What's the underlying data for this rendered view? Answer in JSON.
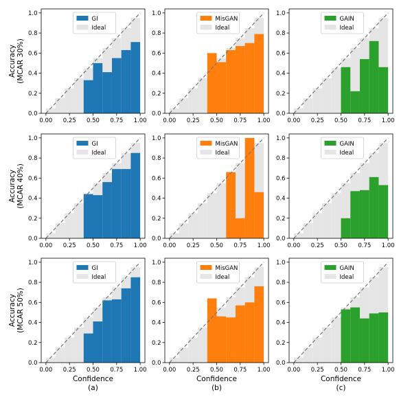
{
  "figure": {
    "row_labels": [
      "Accuracy\n(MCAR 30%)",
      "Accuracy\n(MCAR 40%)",
      "Accuracy\n(MCAR 50%)"
    ],
    "x_axis_label": "Confidence",
    "column_labels": [
      "(a)",
      "(b)",
      "(c)"
    ],
    "colors": {
      "GI": "#1f77b4",
      "MisGAN": "#ff7f0e",
      "GAIN": "#2ca02c",
      "ideal": "#e5e5e5",
      "diagonal": "#777777"
    }
  },
  "chart_data": [
    {
      "type": "bar",
      "panel": "row1-col1",
      "series": [
        {
          "name": "GI",
          "x": [
            0.45,
            0.55,
            0.65,
            0.75,
            0.85,
            0.95
          ],
          "values": [
            0.33,
            0.5,
            0.41,
            0.55,
            0.63,
            0.71
          ]
        },
        {
          "name": "Ideal",
          "x": [
            0.05,
            0.15,
            0.25,
            0.35,
            0.45,
            0.55,
            0.65,
            0.75,
            0.85,
            0.95
          ],
          "values": [
            0.05,
            0.15,
            0.25,
            0.35,
            0.45,
            0.55,
            0.65,
            0.75,
            0.85,
            0.95
          ]
        }
      ],
      "xticks": [
        "0.00",
        "0.25",
        "0.50",
        "0.75",
        "1.00"
      ],
      "yticks": [
        "0.0",
        "0.2",
        "0.4",
        "0.6",
        "0.8",
        "1.0"
      ],
      "xlim": [
        -0.05,
        1.05
      ],
      "ylim": [
        0,
        1.04
      ],
      "legend": "upper-center"
    },
    {
      "type": "bar",
      "panel": "row1-col2",
      "series": [
        {
          "name": "MisGAN",
          "x": [
            0.45,
            0.55,
            0.65,
            0.75,
            0.85,
            0.95
          ],
          "values": [
            0.6,
            0.51,
            0.63,
            0.67,
            0.7,
            0.79
          ]
        },
        {
          "name": "Ideal",
          "x": [
            0.05,
            0.15,
            0.25,
            0.35,
            0.45,
            0.55,
            0.65,
            0.75,
            0.85,
            0.95
          ],
          "values": [
            0.05,
            0.15,
            0.25,
            0.35,
            0.45,
            0.55,
            0.65,
            0.75,
            0.85,
            0.95
          ]
        }
      ],
      "xticks": [
        "0.00",
        "0.25",
        "0.50",
        "0.75",
        "1.00"
      ],
      "yticks": [
        "0.0",
        "0.2",
        "0.4",
        "0.6",
        "0.8",
        "1.0"
      ],
      "xlim": [
        -0.05,
        1.05
      ],
      "ylim": [
        0,
        1.04
      ],
      "legend": "upper-center"
    },
    {
      "type": "bar",
      "panel": "row1-col3",
      "series": [
        {
          "name": "GAIN",
          "x": [
            0.55,
            0.65,
            0.75,
            0.85,
            0.95
          ],
          "values": [
            0.46,
            0.22,
            0.54,
            0.72,
            0.46
          ]
        },
        {
          "name": "Ideal",
          "x": [
            0.05,
            0.15,
            0.25,
            0.35,
            0.45,
            0.55,
            0.65,
            0.75,
            0.85,
            0.95
          ],
          "values": [
            0.05,
            0.15,
            0.25,
            0.35,
            0.45,
            0.55,
            0.65,
            0.75,
            0.85,
            0.95
          ]
        }
      ],
      "xticks": [
        "0.00",
        "0.25",
        "0.50",
        "0.75",
        "1.00"
      ],
      "yticks": [
        "0.0",
        "0.2",
        "0.4",
        "0.6",
        "0.8",
        "1.0"
      ],
      "xlim": [
        -0.05,
        1.05
      ],
      "ylim": [
        0,
        1.04
      ],
      "legend": "upper-center"
    },
    {
      "type": "bar",
      "panel": "row2-col1",
      "series": [
        {
          "name": "GI",
          "x": [
            0.45,
            0.55,
            0.65,
            0.75,
            0.85,
            0.95
          ],
          "values": [
            0.44,
            0.43,
            0.56,
            0.69,
            0.69,
            0.85
          ]
        },
        {
          "name": "Ideal",
          "x": [
            0.05,
            0.15,
            0.25,
            0.35,
            0.45,
            0.55,
            0.65,
            0.75,
            0.85,
            0.95
          ],
          "values": [
            0.05,
            0.15,
            0.25,
            0.35,
            0.45,
            0.55,
            0.65,
            0.75,
            0.85,
            0.95
          ]
        }
      ],
      "xticks": [
        "0.00",
        "0.25",
        "0.50",
        "0.75",
        "1.00"
      ],
      "yticks": [
        "0.0",
        "0.2",
        "0.4",
        "0.6",
        "0.8",
        "1.0"
      ],
      "xlim": [
        -0.05,
        1.05
      ],
      "ylim": [
        0,
        1.04
      ],
      "legend": "upper-center"
    },
    {
      "type": "bar",
      "panel": "row2-col2",
      "series": [
        {
          "name": "MisGAN",
          "x": [
            0.65,
            0.75,
            0.85,
            0.95
          ],
          "values": [
            0.66,
            0.2,
            1.0,
            0.46
          ]
        },
        {
          "name": "Ideal",
          "x": [
            0.05,
            0.15,
            0.25,
            0.35,
            0.45,
            0.55,
            0.65,
            0.75,
            0.85,
            0.95
          ],
          "values": [
            0.05,
            0.15,
            0.25,
            0.35,
            0.45,
            0.55,
            0.65,
            0.75,
            0.85,
            0.95
          ]
        }
      ],
      "xticks": [
        "0.00",
        "0.25",
        "0.50",
        "0.75",
        "1.00"
      ],
      "yticks": [
        "0.0",
        "0.2",
        "0.4",
        "0.6",
        "0.8",
        "1.0"
      ],
      "xlim": [
        -0.05,
        1.05
      ],
      "ylim": [
        0,
        1.04
      ],
      "legend": "upper-center"
    },
    {
      "type": "bar",
      "panel": "row2-col3",
      "series": [
        {
          "name": "GAIN",
          "x": [
            0.55,
            0.65,
            0.75,
            0.85,
            0.95
          ],
          "values": [
            0.2,
            0.47,
            0.48,
            0.61,
            0.53
          ]
        },
        {
          "name": "Ideal",
          "x": [
            0.05,
            0.15,
            0.25,
            0.35,
            0.45,
            0.55,
            0.65,
            0.75,
            0.85,
            0.95
          ],
          "values": [
            0.05,
            0.15,
            0.25,
            0.35,
            0.45,
            0.55,
            0.65,
            0.75,
            0.85,
            0.95
          ]
        }
      ],
      "xticks": [
        "0.00",
        "0.25",
        "0.50",
        "0.75",
        "1.00"
      ],
      "yticks": [
        "0.0",
        "0.2",
        "0.4",
        "0.6",
        "0.8",
        "1.0"
      ],
      "xlim": [
        -0.05,
        1.05
      ],
      "ylim": [
        0,
        1.04
      ],
      "legend": "upper-center"
    },
    {
      "type": "bar",
      "panel": "row3-col1",
      "series": [
        {
          "name": "GI",
          "x": [
            0.45,
            0.55,
            0.65,
            0.75,
            0.85,
            0.95
          ],
          "values": [
            0.29,
            0.41,
            0.62,
            0.63,
            0.74,
            0.85
          ]
        },
        {
          "name": "Ideal",
          "x": [
            0.05,
            0.15,
            0.25,
            0.35,
            0.45,
            0.55,
            0.65,
            0.75,
            0.85,
            0.95
          ],
          "values": [
            0.05,
            0.15,
            0.25,
            0.35,
            0.45,
            0.55,
            0.65,
            0.75,
            0.85,
            0.95
          ]
        }
      ],
      "xticks": [
        "0.00",
        "0.25",
        "0.50",
        "0.75",
        "1.00"
      ],
      "yticks": [
        "0.0",
        "0.2",
        "0.4",
        "0.6",
        "0.8",
        "1.0"
      ],
      "xlim": [
        -0.05,
        1.05
      ],
      "ylim": [
        0,
        1.04
      ],
      "legend": "upper-center"
    },
    {
      "type": "bar",
      "panel": "row3-col2",
      "series": [
        {
          "name": "MisGAN",
          "x": [
            0.45,
            0.55,
            0.65,
            0.75,
            0.85,
            0.95
          ],
          "values": [
            0.64,
            0.46,
            0.45,
            0.57,
            0.6,
            0.76
          ]
        },
        {
          "name": "Ideal",
          "x": [
            0.05,
            0.15,
            0.25,
            0.35,
            0.45,
            0.55,
            0.65,
            0.75,
            0.85,
            0.95
          ],
          "values": [
            0.05,
            0.15,
            0.25,
            0.35,
            0.45,
            0.55,
            0.65,
            0.75,
            0.85,
            0.95
          ]
        }
      ],
      "xticks": [
        "0.00",
        "0.25",
        "0.50",
        "0.75",
        "1.00"
      ],
      "yticks": [
        "0.0",
        "0.2",
        "0.4",
        "0.6",
        "0.8",
        "1.0"
      ],
      "xlim": [
        -0.05,
        1.05
      ],
      "ylim": [
        0,
        1.04
      ],
      "legend": "upper-center"
    },
    {
      "type": "bar",
      "panel": "row3-col3",
      "series": [
        {
          "name": "GAIN",
          "x": [
            0.55,
            0.65,
            0.75,
            0.85,
            0.95
          ],
          "values": [
            0.53,
            0.55,
            0.44,
            0.49,
            0.5
          ]
        },
        {
          "name": "Ideal",
          "x": [
            0.05,
            0.15,
            0.25,
            0.35,
            0.45,
            0.55,
            0.65,
            0.75,
            0.85,
            0.95
          ],
          "values": [
            0.05,
            0.15,
            0.25,
            0.35,
            0.45,
            0.55,
            0.65,
            0.75,
            0.85,
            0.95
          ]
        }
      ],
      "xticks": [
        "0.00",
        "0.25",
        "0.50",
        "0.75",
        "1.00"
      ],
      "yticks": [
        "0.0",
        "0.2",
        "0.4",
        "0.6",
        "0.8",
        "1.0"
      ],
      "xlim": [
        -0.05,
        1.05
      ],
      "ylim": [
        0,
        1.04
      ],
      "legend": "upper-center"
    }
  ]
}
